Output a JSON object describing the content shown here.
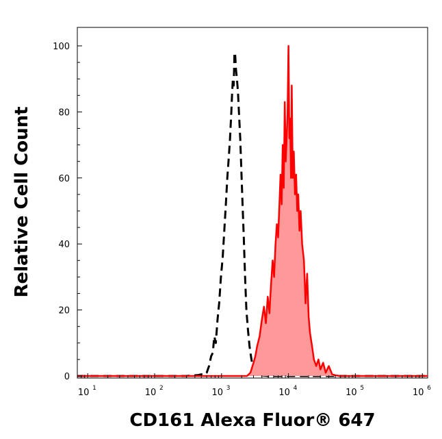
{
  "chart_data": {
    "type": "area",
    "xlabel": "CD161 Alexa Fluor® 647",
    "ylabel": "Relative Cell Count",
    "x_scale": "log",
    "xlim": [
      7,
      1200000
    ],
    "ylim": [
      0,
      100
    ],
    "x_ticks": [
      {
        "base": "10",
        "exp": "1",
        "value": 10
      },
      {
        "base": "10",
        "exp": "2",
        "value": 100
      },
      {
        "base": "10",
        "exp": "3",
        "value": 1000
      },
      {
        "base": "10",
        "exp": "4",
        "value": 10000
      },
      {
        "base": "10",
        "exp": "5",
        "value": 100000
      },
      {
        "base": "10",
        "exp": "6",
        "value": 1000000
      }
    ],
    "y_ticks": [
      0,
      20,
      40,
      60,
      80,
      100
    ],
    "grid": false,
    "legend": "none",
    "series": [
      {
        "style": "dashed",
        "color": "#000000",
        "filled": false,
        "x": [
          7,
          100,
          300,
          450,
          500,
          550,
          600,
          650,
          700,
          740,
          780,
          820,
          870,
          920,
          980,
          1040,
          1100,
          1160,
          1220,
          1280,
          1340,
          1400,
          1440,
          1480,
          1520,
          1560,
          1600,
          1640,
          1700,
          1760,
          1820,
          1900,
          1980,
          2060,
          2150,
          2250,
          2350,
          2480,
          2620,
          2800,
          3000,
          3200,
          3500,
          4000,
          5000,
          10000,
          100000,
          1200000
        ],
        "y": [
          0,
          0,
          0,
          0.3,
          0.5,
          0.3,
          1,
          3,
          6,
          7,
          12,
          10,
          17,
          22,
          30,
          36,
          44,
          52,
          60,
          66,
          72,
          80,
          86,
          90,
          88,
          98,
          97,
          93,
          90,
          86,
          80,
          72,
          62,
          52,
          42,
          30,
          20,
          14,
          9,
          5,
          2,
          1,
          0.5,
          0.2,
          0,
          0,
          0,
          0
        ]
      },
      {
        "style": "solid",
        "color": "#ff0000",
        "fill_color": "#ff9999",
        "filled": true,
        "x": [
          7,
          1000,
          2000,
          2400,
          2700,
          3000,
          3200,
          3400,
          3700,
          4000,
          4300,
          4600,
          4900,
          5200,
          5500,
          5800,
          6100,
          6400,
          6700,
          7000,
          7300,
          7600,
          7900,
          8200,
          8500,
          8800,
          9100,
          9400,
          9700,
          10000,
          10300,
          10600,
          10900,
          11200,
          11600,
          12000,
          12500,
          13000,
          13500,
          14000,
          14600,
          15200,
          16000,
          17000,
          18000,
          19000,
          20000,
          21000,
          22500,
          24000,
          26000,
          28000,
          30000,
          33000,
          36000,
          40000,
          45000,
          50000,
          60000,
          100000,
          1200000
        ],
        "y": [
          0,
          0,
          0,
          0,
          1,
          4,
          6,
          9,
          12,
          17,
          21,
          16,
          24,
          19,
          28,
          35,
          30,
          40,
          46,
          42,
          51,
          61,
          52,
          70,
          57,
          83,
          65,
          72,
          80,
          100,
          72,
          78,
          60,
          88,
          60,
          68,
          55,
          61,
          50,
          55,
          44,
          50,
          40,
          35,
          22,
          31,
          18,
          13,
          9,
          5,
          3,
          5,
          2,
          4,
          1,
          3,
          0.5,
          0.2,
          0,
          0,
          0
        ]
      }
    ]
  }
}
